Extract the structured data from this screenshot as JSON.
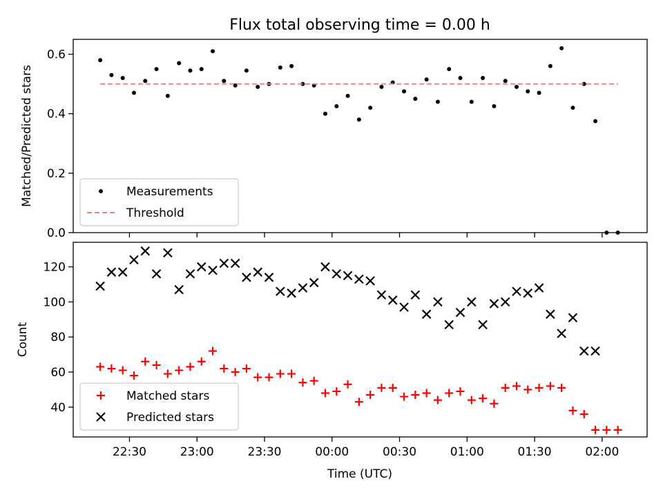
{
  "figure_title": "Flux total observing time = 0.00 h",
  "chart_data": [
    {
      "type": "scatter",
      "title": "Flux total observing time = 0.00 h",
      "xlabel": "",
      "ylabel": "Matched/Predicted stars",
      "ylim": [
        0,
        0.65
      ],
      "yticks": [
        0.0,
        0.2,
        0.4,
        0.6
      ],
      "ytick_labels": [
        "0.0",
        "0.2",
        "0.4",
        "0.6"
      ],
      "x_shared_with_bottom": true,
      "grid": false,
      "legend_position": "lower-left",
      "series": [
        {
          "name": "Measurements",
          "marker": "dot",
          "color": "#000000",
          "x": [
            "22:17",
            "22:22",
            "22:27",
            "22:32",
            "22:37",
            "22:42",
            "22:47",
            "22:52",
            "22:57",
            "23:02",
            "23:07",
            "23:12",
            "23:17",
            "23:22",
            "23:27",
            "23:32",
            "23:37",
            "23:42",
            "23:47",
            "23:52",
            "23:57",
            "00:02",
            "00:07",
            "00:12",
            "00:17",
            "00:22",
            "00:27",
            "00:32",
            "00:37",
            "00:42",
            "00:47",
            "00:52",
            "00:57",
            "01:02",
            "01:07",
            "01:12",
            "01:17",
            "01:22",
            "01:27",
            "01:32",
            "01:37",
            "01:42",
            "01:47",
            "01:52",
            "01:57",
            "02:02",
            "02:07"
          ],
          "y": [
            0.58,
            0.53,
            0.52,
            0.47,
            0.51,
            0.55,
            0.46,
            0.57,
            0.545,
            0.55,
            0.61,
            0.51,
            0.495,
            0.545,
            0.49,
            0.5,
            0.555,
            0.56,
            0.5,
            0.495,
            0.4,
            0.425,
            0.46,
            0.38,
            0.42,
            0.49,
            0.505,
            0.475,
            0.45,
            0.515,
            0.44,
            0.55,
            0.52,
            0.44,
            0.52,
            0.425,
            0.51,
            0.49,
            0.475,
            0.47,
            0.56,
            0.62,
            0.42,
            0.5,
            0.375,
            0.0,
            0.0
          ]
        },
        {
          "name": "Threshold",
          "style": "dashed",
          "color": "#f08080",
          "x": [
            "22:17",
            "02:07"
          ],
          "y": [
            0.5,
            0.5
          ]
        }
      ]
    },
    {
      "type": "scatter",
      "title": "",
      "xlabel": "Time (UTC)",
      "ylabel": "Count",
      "ylim": [
        23,
        134
      ],
      "yticks": [
        40,
        60,
        80,
        100,
        120
      ],
      "ytick_labels": [
        "40",
        "60",
        "80",
        "100",
        "120"
      ],
      "xticks": [
        "22:30",
        "23:00",
        "23:30",
        "00:00",
        "00:30",
        "01:00",
        "01:30",
        "02:00"
      ],
      "xlim": [
        "22:05",
        "02:20"
      ],
      "grid": false,
      "legend_position": "lower-left",
      "series": [
        {
          "name": "Matched stars",
          "marker": "plus",
          "color": "#ff0000",
          "x": [
            "22:17",
            "22:22",
            "22:27",
            "22:32",
            "22:37",
            "22:42",
            "22:47",
            "22:52",
            "22:57",
            "23:02",
            "23:07",
            "23:12",
            "23:17",
            "23:22",
            "23:27",
            "23:32",
            "23:37",
            "23:42",
            "23:47",
            "23:52",
            "23:57",
            "00:02",
            "00:07",
            "00:12",
            "00:17",
            "00:22",
            "00:27",
            "00:32",
            "00:37",
            "00:42",
            "00:47",
            "00:52",
            "00:57",
            "01:02",
            "01:07",
            "01:12",
            "01:17",
            "01:22",
            "01:27",
            "01:32",
            "01:37",
            "01:42",
            "01:47",
            "01:52",
            "01:57",
            "02:02",
            "02:07"
          ],
          "y": [
            63,
            62,
            61,
            58,
            66,
            64,
            59,
            61,
            63,
            66,
            72,
            62,
            60,
            62,
            57,
            57,
            59,
            59,
            54,
            55,
            48,
            49,
            53,
            43,
            47,
            51,
            51,
            46,
            47,
            48,
            44,
            48,
            49,
            44,
            45,
            42,
            51,
            52,
            50,
            51,
            52,
            51,
            38,
            36,
            27,
            27,
            27
          ]
        },
        {
          "name": "Predicted stars",
          "marker": "x",
          "color": "#000000",
          "x": [
            "22:17",
            "22:22",
            "22:27",
            "22:32",
            "22:37",
            "22:42",
            "22:47",
            "22:52",
            "22:57",
            "23:02",
            "23:07",
            "23:12",
            "23:17",
            "23:22",
            "23:27",
            "23:32",
            "23:37",
            "23:42",
            "23:47",
            "23:52",
            "23:57",
            "00:02",
            "00:07",
            "00:12",
            "00:17",
            "00:22",
            "00:27",
            "00:32",
            "00:37",
            "00:42",
            "00:47",
            "00:52",
            "00:57",
            "01:02",
            "01:07",
            "01:12",
            "01:17",
            "01:22",
            "01:27",
            "01:32",
            "01:37",
            "01:42",
            "01:47",
            "01:52",
            "01:57"
          ],
          "y": [
            109,
            117,
            117,
            124,
            129,
            116,
            128,
            107,
            116,
            120,
            118,
            122,
            122,
            114,
            117,
            114,
            106,
            105,
            108,
            111,
            120,
            116,
            115,
            113,
            112,
            104,
            101,
            97,
            104,
            93,
            100,
            87,
            94,
            100,
            87,
            99,
            100,
            106,
            105,
            108,
            93,
            82,
            91,
            72,
            72
          ]
        }
      ]
    }
  ]
}
